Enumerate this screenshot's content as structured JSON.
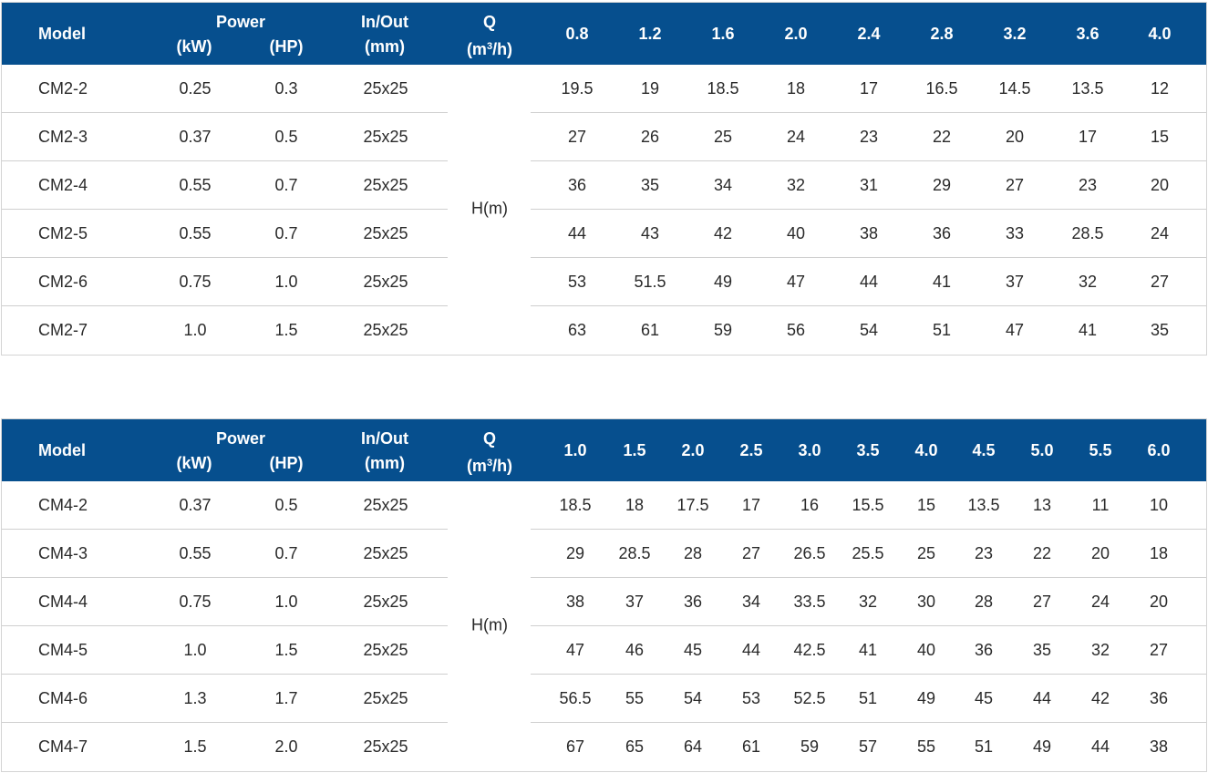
{
  "colors": {
    "header_bg": "#064f8e",
    "header_text": "#ffffff",
    "divider": "#cfcfcf"
  },
  "header_labels": {
    "model": "Model",
    "power": "Power",
    "kw": "(kW)",
    "hp": "(HP)",
    "inout": "In/Out",
    "mm": "(mm)",
    "q": "Q",
    "q_unit_prefix": "(m",
    "q_unit_sup": "3",
    "q_unit_suffix": "/h)",
    "hm": "H(m)"
  },
  "tables": [
    {
      "flows": [
        "0.8",
        "1.2",
        "1.6",
        "2.0",
        "2.4",
        "2.8",
        "3.2",
        "3.6",
        "4.0"
      ],
      "rows": [
        {
          "model": "CM2-2",
          "kw": "0.25",
          "hp": "0.3",
          "inout": "25x25",
          "heads": [
            "19.5",
            "19",
            "18.5",
            "18",
            "17",
            "16.5",
            "14.5",
            "13.5",
            "12"
          ]
        },
        {
          "model": "CM2-3",
          "kw": "0.37",
          "hp": "0.5",
          "inout": "25x25",
          "heads": [
            "27",
            "26",
            "25",
            "24",
            "23",
            "22",
            "20",
            "17",
            "15"
          ]
        },
        {
          "model": "CM2-4",
          "kw": "0.55",
          "hp": "0.7",
          "inout": "25x25",
          "heads": [
            "36",
            "35",
            "34",
            "32",
            "31",
            "29",
            "27",
            "23",
            "20"
          ]
        },
        {
          "model": "CM2-5",
          "kw": "0.55",
          "hp": "0.7",
          "inout": "25x25",
          "heads": [
            "44",
            "43",
            "42",
            "40",
            "38",
            "36",
            "33",
            "28.5",
            "24"
          ]
        },
        {
          "model": "CM2-6",
          "kw": "0.75",
          "hp": "1.0",
          "inout": "25x25",
          "heads": [
            "53",
            "51.5",
            "49",
            "47",
            "44",
            "41",
            "37",
            "32",
            "27"
          ]
        },
        {
          "model": "CM2-7",
          "kw": "1.0",
          "hp": "1.5",
          "inout": "25x25",
          "heads": [
            "63",
            "61",
            "59",
            "56",
            "54",
            "51",
            "47",
            "41",
            "35"
          ]
        }
      ]
    },
    {
      "flows": [
        "1.0",
        "1.5",
        "2.0",
        "2.5",
        "3.0",
        "3.5",
        "4.0",
        "4.5",
        "5.0",
        "5.5",
        "6.0"
      ],
      "rows": [
        {
          "model": "CM4-2",
          "kw": "0.37",
          "hp": "0.5",
          "inout": "25x25",
          "heads": [
            "18.5",
            "18",
            "17.5",
            "17",
            "16",
            "15.5",
            "15",
            "13.5",
            "13",
            "11",
            "10"
          ]
        },
        {
          "model": "CM4-3",
          "kw": "0.55",
          "hp": "0.7",
          "inout": "25x25",
          "heads": [
            "29",
            "28.5",
            "28",
            "27",
            "26.5",
            "25.5",
            "25",
            "23",
            "22",
            "20",
            "18"
          ]
        },
        {
          "model": "CM4-4",
          "kw": "0.75",
          "hp": "1.0",
          "inout": "25x25",
          "heads": [
            "38",
            "37",
            "36",
            "34",
            "33.5",
            "32",
            "30",
            "28",
            "27",
            "24",
            "20"
          ]
        },
        {
          "model": "CM4-5",
          "kw": "1.0",
          "hp": "1.5",
          "inout": "25x25",
          "heads": [
            "47",
            "46",
            "45",
            "44",
            "42.5",
            "41",
            "40",
            "36",
            "35",
            "32",
            "27"
          ]
        },
        {
          "model": "CM4-6",
          "kw": "1.3",
          "hp": "1.7",
          "inout": "25x25",
          "heads": [
            "56.5",
            "55",
            "54",
            "53",
            "52.5",
            "51",
            "49",
            "45",
            "44",
            "42",
            "36"
          ]
        },
        {
          "model": "CM4-7",
          "kw": "1.5",
          "hp": "2.0",
          "inout": "25x25",
          "heads": [
            "67",
            "65",
            "64",
            "61",
            "59",
            "57",
            "55",
            "51",
            "49",
            "44",
            "38"
          ]
        }
      ]
    }
  ]
}
